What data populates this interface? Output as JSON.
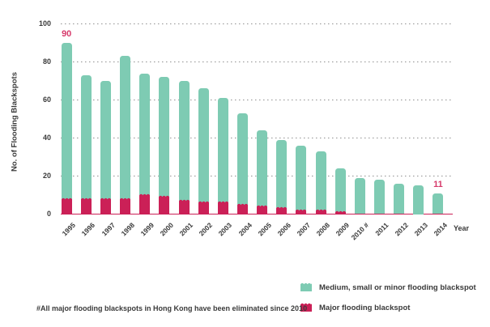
{
  "colors": {
    "medium_series": "#7ecbb3",
    "major_series": "#cb2057",
    "annotation": "#d63a6b",
    "grid": "#909090",
    "text": "#3a3a3a",
    "background": "#ffffff"
  },
  "chart_data": {
    "type": "bar",
    "stacked": true,
    "title": "",
    "xlabel": "Year",
    "ylabel": "No. of Flooding Blackspots",
    "ylim": [
      0,
      100
    ],
    "yticks": [
      0,
      20,
      40,
      60,
      80,
      100
    ],
    "grid": "horizontal-dashed",
    "legend_position": "bottom-right",
    "categories": [
      "1995",
      "1996",
      "1997",
      "1998",
      "1999",
      "2000",
      "2001",
      "2002",
      "2003",
      "2004",
      "2005",
      "2006",
      "2007",
      "2008",
      "2009",
      "2010 #",
      "2011",
      "2012",
      "2013",
      "2014"
    ],
    "series": [
      {
        "name": "Major flooding blackspot",
        "color": "#cb2057",
        "values": [
          8,
          8,
          8,
          8,
          10,
          9,
          7,
          6,
          6,
          5,
          4,
          3,
          2,
          2,
          1,
          0,
          0,
          0,
          0,
          0
        ]
      },
      {
        "name": "Medium, small or minor flooding blackspot",
        "color": "#7ecbb3",
        "values": [
          82,
          65,
          62,
          75,
          64,
          63,
          63,
          60,
          55,
          48,
          40,
          36,
          34,
          31,
          23,
          19,
          18,
          16,
          15,
          11
        ]
      }
    ],
    "totals": [
      90,
      73,
      70,
      83,
      74,
      72,
      70,
      66,
      61,
      53,
      44,
      39,
      36,
      33,
      24,
      19,
      18,
      16,
      15,
      11
    ],
    "annotations": [
      {
        "category": "1995",
        "text": "90"
      },
      {
        "category": "2014",
        "text": "11"
      }
    ],
    "legend": [
      {
        "label": "Medium, small or minor flooding blackspot",
        "series": "medium"
      },
      {
        "label": "Major flooding blackspot",
        "series": "major"
      }
    ]
  },
  "footnote": "#All major flooding blackspots in Hong Kong have been eliminated since 2010"
}
